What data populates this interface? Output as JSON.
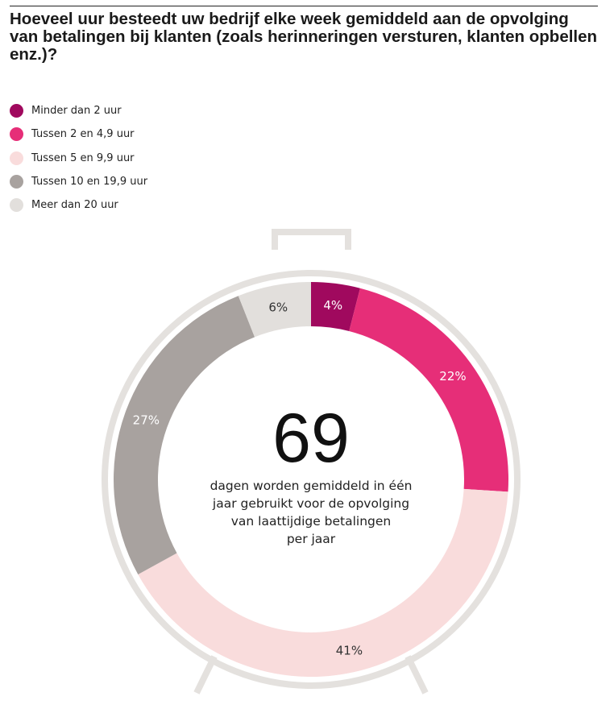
{
  "title": "Hoeveel uur besteedt uw bedrijf elke week gemiddeld aan de opvolging van betalingen bij klanten (zoals herinneringen versturen, klanten opbellen enz.)?",
  "chart_data": {
    "type": "pie",
    "donut": true,
    "categories": [
      "Minder dan 2 uur",
      "Tussen 2 en 4,9 uur",
      "Tussen 5 en 9,9 uur",
      "Tussen 10 en 19,9 uur",
      "Meer dan 20 uur"
    ],
    "values": [
      4,
      22,
      41,
      27,
      6
    ],
    "labels": [
      "4%",
      "22%",
      "41%",
      "27%",
      "6%"
    ],
    "colors": [
      "#a0095e",
      "#e62e78",
      "#f9dcdc",
      "#a8a29f",
      "#e2dfdc"
    ],
    "label_colors": [
      "#ffffff",
      "#ffffff",
      "#333333",
      "#ffffff",
      "#333333"
    ],
    "legend_position": "top-left",
    "center_value": "69",
    "center_text": [
      "dagen worden gemiddeld in één",
      "jaar gebruikt voor de opvolging",
      "van laattijdige betalingen",
      "per jaar"
    ]
  }
}
